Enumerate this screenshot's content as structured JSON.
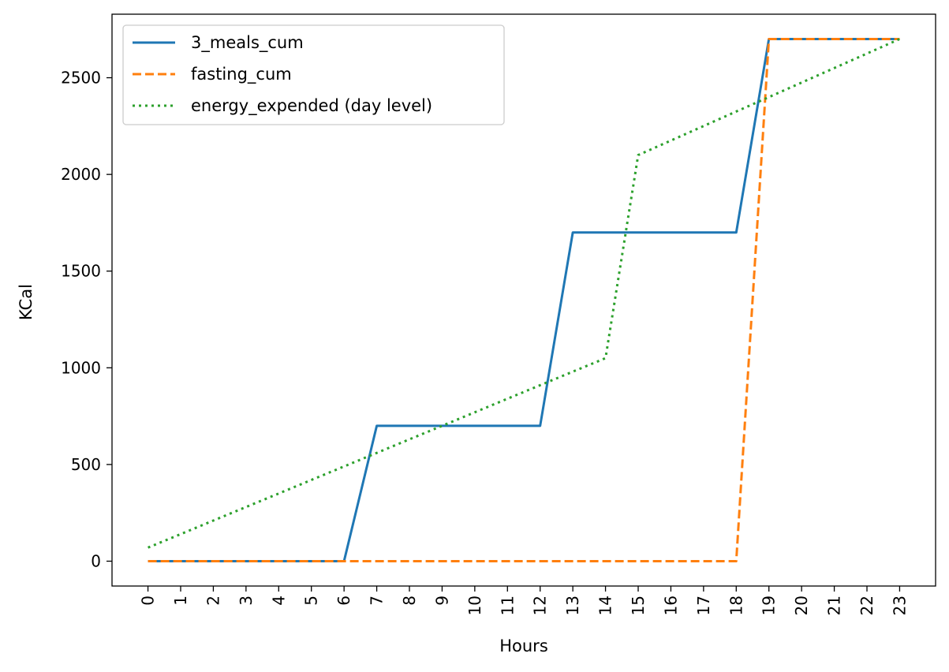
{
  "chart_data": {
    "type": "line",
    "title": "",
    "xlabel": "Hours",
    "ylabel": "KCal",
    "x": [
      0,
      1,
      2,
      3,
      4,
      5,
      6,
      7,
      8,
      9,
      10,
      11,
      12,
      13,
      14,
      15,
      16,
      17,
      18,
      19,
      20,
      21,
      22,
      23
    ],
    "xticks": [
      "0",
      "1",
      "2",
      "3",
      "4",
      "5",
      "6",
      "7",
      "8",
      "9",
      "10",
      "11",
      "12",
      "13",
      "14",
      "15",
      "16",
      "17",
      "18",
      "19",
      "20",
      "21",
      "22",
      "23"
    ],
    "yticks": [
      0,
      500,
      1000,
      1500,
      2000,
      2500
    ],
    "xlim": [
      -1.1,
      24.1
    ],
    "ylim": [
      -128.5,
      2828.5
    ],
    "grid": false,
    "legend_position": "upper-left",
    "series": [
      {
        "name": "3_meals_cum",
        "color": "#1f77b4",
        "dash": "solid",
        "values": [
          0,
          0,
          0,
          0,
          0,
          0,
          0,
          700,
          700,
          700,
          700,
          700,
          700,
          1700,
          1700,
          1700,
          1700,
          1700,
          1700,
          2700,
          2700,
          2700,
          2700,
          2700
        ]
      },
      {
        "name": "fasting_cum",
        "color": "#ff7f0e",
        "dash": "dashed",
        "values": [
          0,
          0,
          0,
          0,
          0,
          0,
          0,
          0,
          0,
          0,
          0,
          0,
          0,
          0,
          0,
          0,
          0,
          0,
          0,
          2700,
          2700,
          2700,
          2700,
          2700
        ]
      },
      {
        "name": "energy_expended (day level)",
        "color": "#2ca02c",
        "dash": "dotted",
        "values": [
          70,
          140,
          210,
          280,
          350,
          420,
          490,
          560,
          630,
          700,
          770,
          840,
          910,
          980,
          1050,
          2100,
          2175,
          2250,
          2325,
          2400,
          2475,
          2550,
          2625,
          2700
        ]
      }
    ]
  }
}
